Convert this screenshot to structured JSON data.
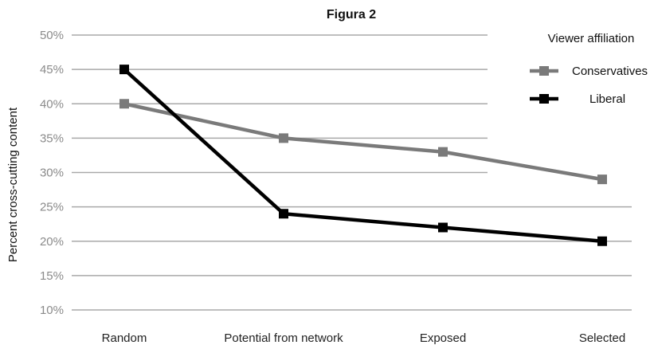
{
  "chart_data": {
    "type": "line",
    "title": "Figura 2",
    "ylabel": "Percent cross-cutting content",
    "xlabel": "",
    "categories": [
      "Random",
      "Potential from network",
      "Exposed",
      "Selected"
    ],
    "y_ticks": [
      "10%",
      "15%",
      "20%",
      "25%",
      "30%",
      "35%",
      "40%",
      "45%",
      "50%"
    ],
    "ylim": [
      10,
      50
    ],
    "grid": true,
    "legend_title": "Viewer affiliation",
    "legend_position": "top-right",
    "series": [
      {
        "name": "Conservatives",
        "color": "#7a7a7a",
        "values": [
          40,
          35,
          33,
          29
        ]
      },
      {
        "name": "Liberal",
        "color": "#000000",
        "values": [
          45,
          24,
          22,
          20
        ]
      }
    ]
  }
}
